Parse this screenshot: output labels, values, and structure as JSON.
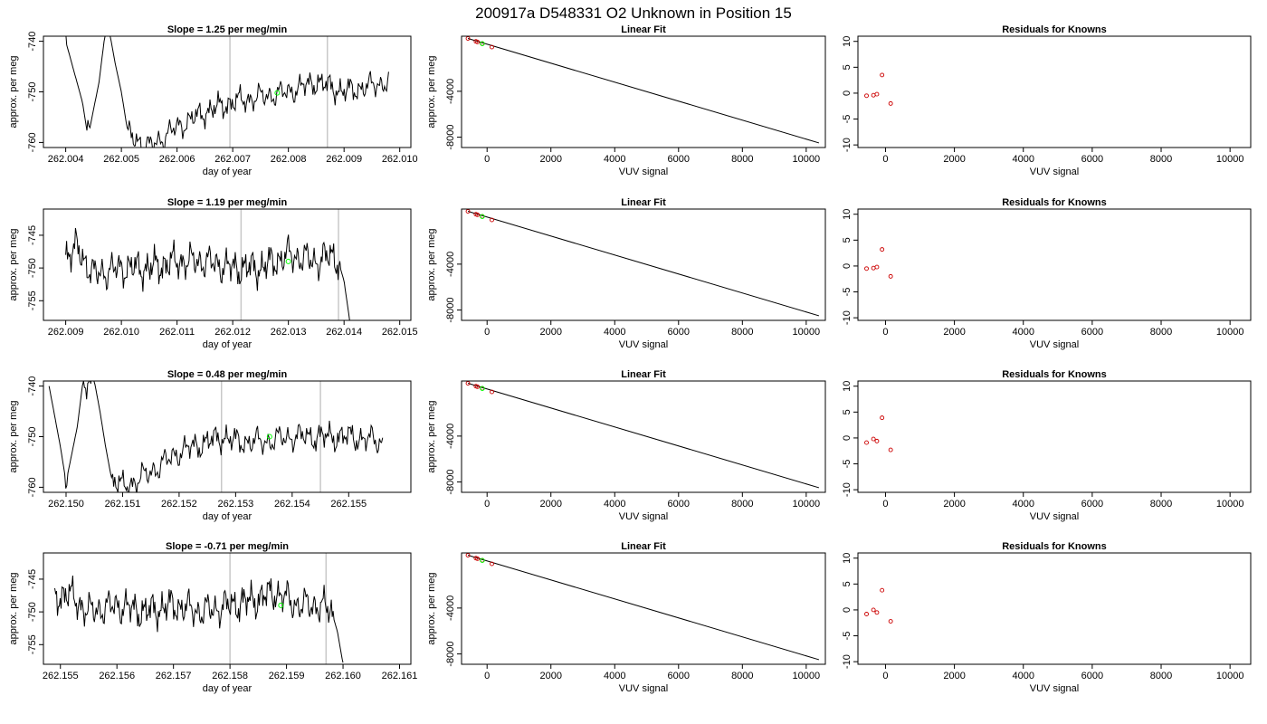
{
  "figure": {
    "title": "200917a      D548331    O2 Unknown in Position  15"
  },
  "chart_data": [
    {
      "type": "line",
      "row": 1,
      "title": "Slope =  1.25  per meg/min",
      "xlabel": "day of year",
      "ylabel": "approx. per meg",
      "xlim": [
        262.0036,
        262.0102
      ],
      "ylim": [
        -761,
        -739
      ],
      "xticks": [
        "262.004",
        "262.005",
        "262.006",
        "262.007",
        "262.008",
        "262.009",
        "262.010"
      ],
      "yticks": [
        "-740",
        "-750",
        "-760"
      ],
      "vlines": [
        262.00695,
        262.0087
      ],
      "marker": {
        "x": 262.0078,
        "y": -750.2
      },
      "x_start": 262.004,
      "x_end": 262.0098,
      "key_points": [
        [
          262.004,
          -740
        ],
        [
          262.0043,
          -752
        ],
        [
          262.0044,
          -759
        ],
        [
          262.0046,
          -748
        ],
        [
          262.0047,
          -739
        ],
        [
          262.0048,
          -739
        ],
        [
          262.0049,
          -745
        ],
        [
          262.005,
          -750
        ],
        [
          262.0051,
          -757
        ],
        [
          262.0052,
          -759
        ],
        [
          262.0055,
          -761
        ],
        [
          262.006,
          -757
        ],
        [
          262.0065,
          -754
        ],
        [
          262.007,
          -752
        ],
        [
          262.0075,
          -751
        ],
        [
          262.008,
          -750
        ],
        [
          262.0085,
          -748
        ],
        [
          262.009,
          -750
        ],
        [
          262.0098,
          -748
        ]
      ],
      "noise_amp": 1.5
    },
    {
      "type": "scatter",
      "row": 1,
      "title": "Linear Fit",
      "xlabel": "VUV signal",
      "ylabel": "approx. per meg",
      "xlim": [
        -800,
        10600
      ],
      "ylim": [
        -8900,
        800
      ],
      "xticks": [
        0,
        2000,
        4000,
        6000,
        8000,
        10000
      ],
      "yticks": [
        -4000,
        -8000
      ],
      "fit_line": [
        [
          -600,
          600
        ],
        [
          10400,
          -8500
        ]
      ],
      "points": [
        [
          -600,
          600
        ],
        [
          -350,
          350
        ],
        [
          -300,
          300
        ],
        [
          -150,
          160
        ],
        [
          150,
          -150
        ]
      ],
      "green_point": [
        -150,
        150
      ]
    },
    {
      "type": "scatter",
      "row": 1,
      "title": "Residuals for Knowns",
      "xlabel": "VUV signal",
      "ylabel": "",
      "xlim": [
        -800,
        10600
      ],
      "ylim": [
        -10.5,
        11
      ],
      "xticks": [
        0,
        2000,
        4000,
        6000,
        8000,
        10000
      ],
      "yticks": [
        10,
        5,
        0,
        -5,
        -10
      ],
      "points": [
        [
          -550,
          -0.5
        ],
        [
          -350,
          -0.4
        ],
        [
          -250,
          -0.2
        ],
        [
          -100,
          3.5
        ],
        [
          150,
          -2.0
        ]
      ]
    },
    {
      "type": "line",
      "row": 2,
      "title": "Slope =  1.19  per meg/min",
      "xlabel": "day of year",
      "ylabel": "approx. per meg",
      "xlim": [
        262.0086,
        262.0152
      ],
      "ylim": [
        -758,
        -741
      ],
      "xticks": [
        "262.009",
        "262.010",
        "262.011",
        "262.012",
        "262.013",
        "262.014",
        "262.015"
      ],
      "yticks": [
        "-745",
        "-750",
        "-755"
      ],
      "vlines": [
        262.01215,
        262.0139
      ],
      "marker": {
        "x": 262.013,
        "y": -749.0
      },
      "x_start": 262.009,
      "x_end": 262.0141,
      "key_points": [
        [
          262.009,
          -748
        ],
        [
          262.0092,
          -747
        ],
        [
          262.0095,
          -751
        ],
        [
          262.01,
          -750
        ],
        [
          262.0105,
          -750
        ],
        [
          262.011,
          -749
        ],
        [
          262.0115,
          -749
        ],
        [
          262.012,
          -750
        ],
        [
          262.0125,
          -750
        ],
        [
          262.013,
          -748
        ],
        [
          262.0135,
          -749
        ],
        [
          262.0138,
          -748
        ],
        [
          262.0139,
          -749
        ],
        [
          262.014,
          -752
        ],
        [
          262.0141,
          -758
        ]
      ],
      "noise_amp": 1.6
    },
    {
      "type": "scatter",
      "row": 2,
      "title": "Linear Fit",
      "xlabel": "VUV signal",
      "ylabel": "approx. per meg",
      "xlim": [
        -800,
        10600
      ],
      "ylim": [
        -8900,
        800
      ],
      "xticks": [
        0,
        2000,
        4000,
        6000,
        8000,
        10000
      ],
      "yticks": [
        -4000,
        -8000
      ],
      "fit_line": [
        [
          -600,
          600
        ],
        [
          10400,
          -8500
        ]
      ],
      "points": [
        [
          -600,
          600
        ],
        [
          -350,
          350
        ],
        [
          -300,
          300
        ],
        [
          -150,
          160
        ],
        [
          150,
          -150
        ]
      ],
      "green_point": [
        -150,
        150
      ]
    },
    {
      "type": "scatter",
      "row": 2,
      "title": "Residuals for Knowns",
      "xlabel": "VUV signal",
      "ylabel": "",
      "xlim": [
        -800,
        10600
      ],
      "ylim": [
        -10.5,
        11
      ],
      "xticks": [
        0,
        2000,
        4000,
        6000,
        8000,
        10000
      ],
      "yticks": [
        10,
        5,
        0,
        -5,
        -10
      ],
      "points": [
        [
          -550,
          -0.5
        ],
        [
          -350,
          -0.4
        ],
        [
          -250,
          -0.2
        ],
        [
          -100,
          3.2
        ],
        [
          150,
          -2.0
        ]
      ]
    },
    {
      "type": "line",
      "row": 3,
      "title": "Slope =  0.48  per meg/min",
      "xlabel": "day of year",
      "ylabel": "approx. per meg",
      "xlim": [
        262.1496,
        262.1561
      ],
      "ylim": [
        -761,
        -739
      ],
      "xticks": [
        "262.150",
        "262.151",
        "262.152",
        "262.153",
        "262.154",
        "262.155"
      ],
      "yticks": [
        "-740",
        "-750",
        "-760"
      ],
      "vlines": [
        262.15275,
        262.1545
      ],
      "marker": {
        "x": 262.1536,
        "y": -750.0
      },
      "x_start": 262.1497,
      "x_end": 262.1556,
      "key_points": [
        [
          262.1497,
          -740
        ],
        [
          262.1499,
          -752
        ],
        [
          262.15,
          -759
        ],
        [
          262.1502,
          -748
        ],
        [
          262.1503,
          -739
        ],
        [
          262.1505,
          -739
        ],
        [
          262.1506,
          -745
        ],
        [
          262.1507,
          -752
        ],
        [
          262.1508,
          -758
        ],
        [
          262.151,
          -760
        ],
        [
          262.1512,
          -759
        ],
        [
          262.1515,
          -757
        ],
        [
          262.152,
          -753
        ],
        [
          262.1525,
          -751
        ],
        [
          262.1528,
          -750
        ],
        [
          262.153,
          -751
        ],
        [
          262.1535,
          -751
        ],
        [
          262.154,
          -750
        ],
        [
          262.1545,
          -750
        ],
        [
          262.155,
          -750
        ],
        [
          262.1556,
          -751
        ]
      ],
      "noise_amp": 1.6
    },
    {
      "type": "scatter",
      "row": 3,
      "title": "Linear Fit",
      "xlabel": "VUV signal",
      "ylabel": "approx. per meg",
      "xlim": [
        -800,
        10600
      ],
      "ylim": [
        -8900,
        800
      ],
      "xticks": [
        0,
        2000,
        4000,
        6000,
        8000,
        10000
      ],
      "yticks": [
        -4000,
        -8000
      ],
      "fit_line": [
        [
          -600,
          600
        ],
        [
          10400,
          -8500
        ]
      ],
      "points": [
        [
          -600,
          600
        ],
        [
          -350,
          350
        ],
        [
          -300,
          300
        ],
        [
          -150,
          160
        ],
        [
          150,
          -150
        ]
      ],
      "green_point": [
        -150,
        150
      ]
    },
    {
      "type": "scatter",
      "row": 3,
      "title": "Residuals for Knowns",
      "xlabel": "VUV signal",
      "ylabel": "",
      "xlim": [
        -800,
        10600
      ],
      "ylim": [
        -10.5,
        11
      ],
      "xticks": [
        0,
        2000,
        4000,
        6000,
        8000,
        10000
      ],
      "yticks": [
        10,
        5,
        0,
        -5,
        -10
      ],
      "points": [
        [
          -550,
          -0.9
        ],
        [
          -350,
          -0.2
        ],
        [
          -250,
          -0.6
        ],
        [
          -100,
          3.9
        ],
        [
          150,
          -2.3
        ]
      ]
    },
    {
      "type": "line",
      "row": 4,
      "title": "Slope =  -0.71  per meg/min",
      "xlabel": "day of year",
      "ylabel": "approx. per meg",
      "xlim": [
        262.1547,
        262.1612
      ],
      "ylim": [
        -758,
        -741
      ],
      "xticks": [
        "262.155",
        "262.156",
        "262.157",
        "262.158",
        "262.159",
        "262.160",
        "262.161"
      ],
      "yticks": [
        "-745",
        "-750",
        "-755"
      ],
      "vlines": [
        262.158,
        262.1597
      ],
      "marker": {
        "x": 262.1589,
        "y": -749.0
      },
      "x_start": 262.1549,
      "x_end": 262.16,
      "key_points": [
        [
          262.1549,
          -748
        ],
        [
          262.1551,
          -747
        ],
        [
          262.1555,
          -750
        ],
        [
          262.156,
          -749
        ],
        [
          262.1565,
          -750
        ],
        [
          262.157,
          -749
        ],
        [
          262.1575,
          -750
        ],
        [
          262.158,
          -749
        ],
        [
          262.1585,
          -748
        ],
        [
          262.1588,
          -747
        ],
        [
          262.1592,
          -749
        ],
        [
          262.1596,
          -749
        ],
        [
          262.1598,
          -750
        ],
        [
          262.1599,
          -753
        ],
        [
          262.16,
          -758
        ]
      ],
      "noise_amp": 1.6
    },
    {
      "type": "scatter",
      "row": 4,
      "title": "Linear Fit",
      "xlabel": "VUV signal",
      "ylabel": "approx. per meg",
      "xlim": [
        -800,
        10600
      ],
      "ylim": [
        -8900,
        800
      ],
      "xticks": [
        0,
        2000,
        4000,
        6000,
        8000,
        10000
      ],
      "yticks": [
        -4000,
        -8000
      ],
      "fit_line": [
        [
          -600,
          600
        ],
        [
          10400,
          -8500
        ]
      ],
      "points": [
        [
          -600,
          600
        ],
        [
          -350,
          350
        ],
        [
          -300,
          300
        ],
        [
          -150,
          160
        ],
        [
          150,
          -150
        ]
      ],
      "green_point": [
        -150,
        150
      ]
    },
    {
      "type": "scatter",
      "row": 4,
      "title": "Residuals for Knowns",
      "xlabel": "VUV signal",
      "ylabel": "",
      "xlim": [
        -800,
        10600
      ],
      "ylim": [
        -10.5,
        11
      ],
      "xticks": [
        0,
        2000,
        4000,
        6000,
        8000,
        10000
      ],
      "yticks": [
        10,
        5,
        0,
        -5,
        -10
      ],
      "points": [
        [
          -550,
          -0.8
        ],
        [
          -350,
          0.0
        ],
        [
          -250,
          -0.5
        ],
        [
          -100,
          3.8
        ],
        [
          150,
          -2.2
        ]
      ]
    }
  ],
  "colors": {
    "line": "#000000",
    "vline": "#c8c8c8",
    "marker": "#00ff00",
    "residual": "#cc0000",
    "frame": "#000000"
  }
}
